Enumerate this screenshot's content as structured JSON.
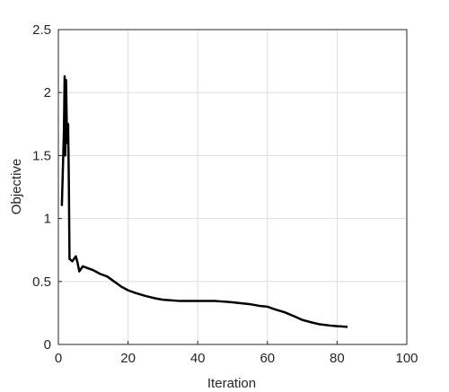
{
  "chart_data": {
    "type": "line",
    "x_label": "Iteration",
    "y_label": "Objective",
    "x": [
      1,
      1.3,
      1.6,
      1.8,
      2.0,
      2.2,
      2.5,
      2.8,
      3.0,
      3.2,
      4,
      5,
      5.5,
      6,
      6.5,
      7,
      8,
      10,
      12,
      14,
      16,
      18,
      20,
      22,
      25,
      28,
      30,
      35,
      40,
      45,
      50,
      55,
      58,
      60,
      62,
      65,
      68,
      70,
      72,
      75,
      78,
      80,
      83
    ],
    "series": [
      {
        "color": "#000000",
        "values": [
          1.1,
          1.4,
          1.7,
          2.13,
          1.5,
          2.1,
          1.6,
          1.75,
          1.3,
          0.68,
          0.66,
          0.7,
          0.65,
          0.58,
          0.6,
          0.62,
          0.61,
          0.59,
          0.56,
          0.54,
          0.5,
          0.46,
          0.43,
          0.41,
          0.385,
          0.365,
          0.355,
          0.345,
          0.345,
          0.345,
          0.335,
          0.32,
          0.305,
          0.3,
          0.28,
          0.255,
          0.22,
          0.195,
          0.18,
          0.16,
          0.15,
          0.145,
          0.14
        ]
      }
    ],
    "xlim": [
      0,
      100
    ],
    "xticks": [
      0,
      20,
      40,
      60,
      80,
      100
    ],
    "ylim": [
      0,
      2.5
    ],
    "yticks": [
      0,
      0.5,
      1,
      1.5,
      2,
      2.5
    ],
    "grid": true
  }
}
